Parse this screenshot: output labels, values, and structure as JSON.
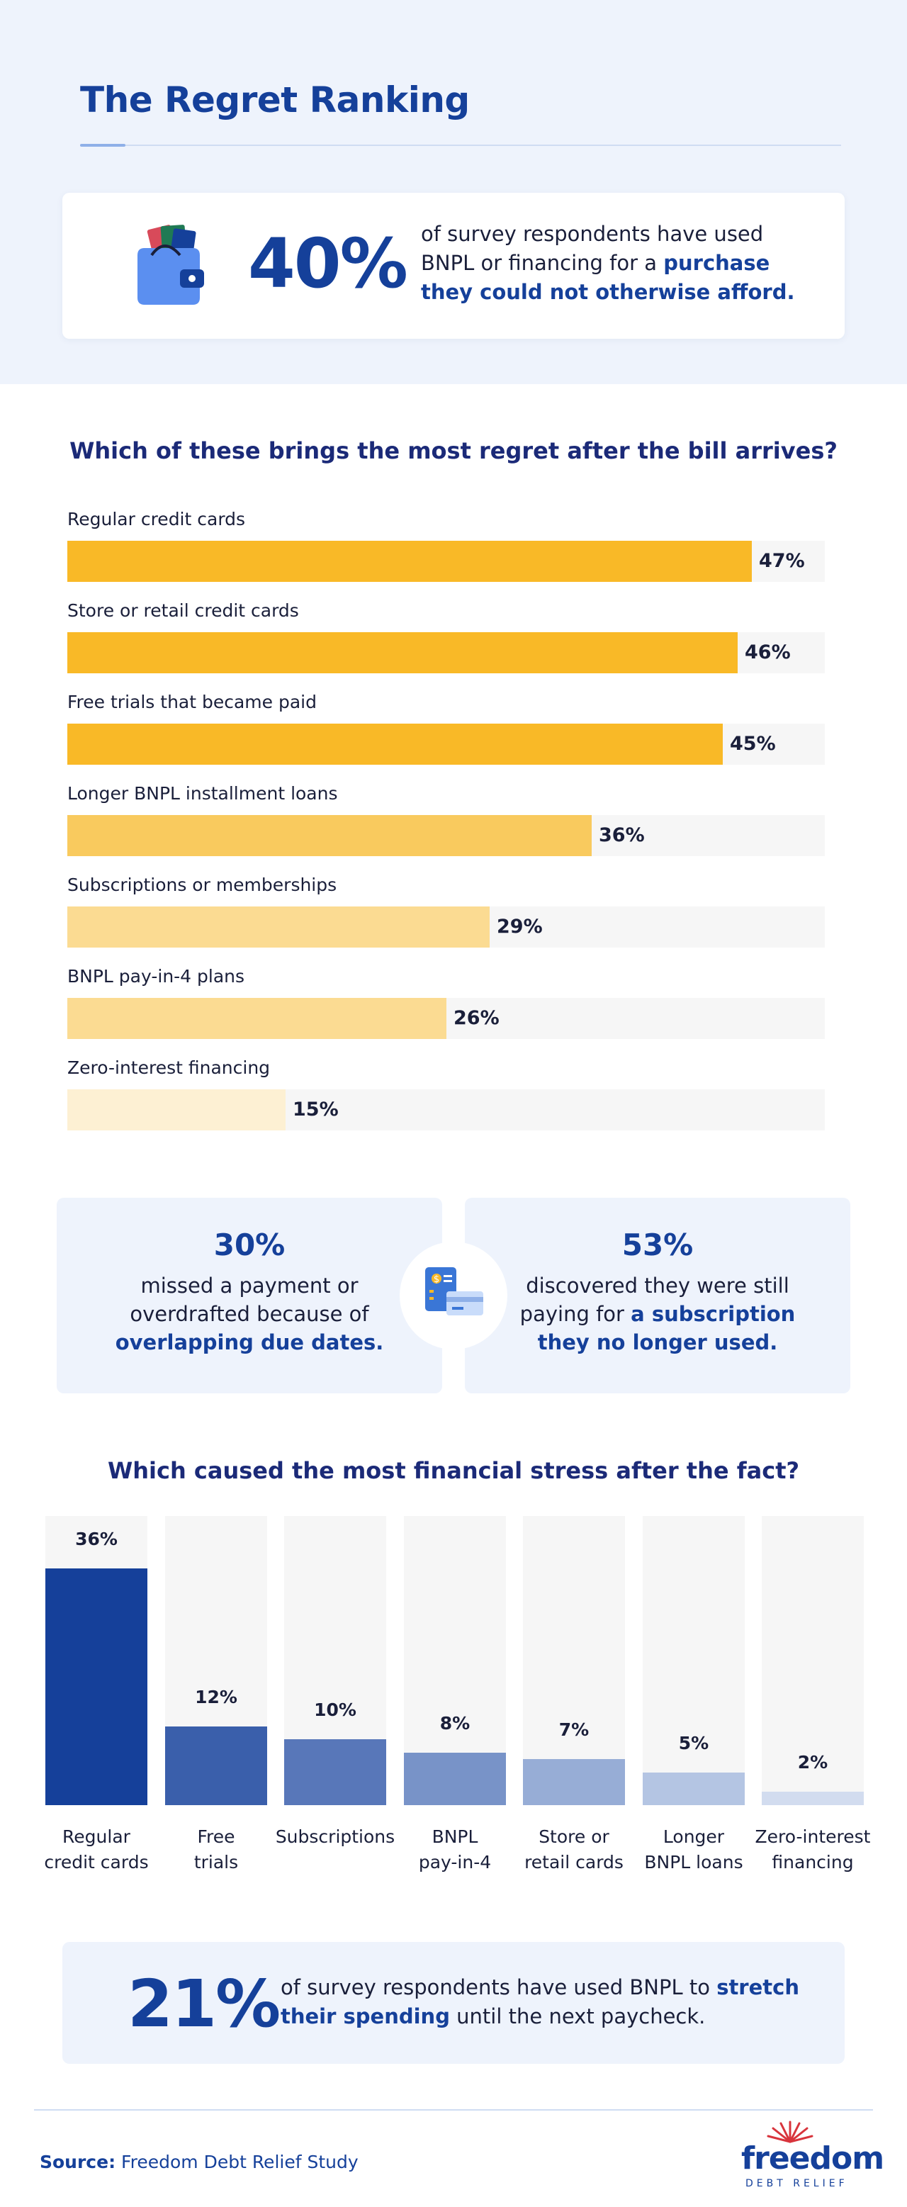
{
  "header": {
    "title": "The Regret Ranking",
    "stat_pct": "40%",
    "stat_text_plain": "of survey respondents have used BNPL or financing for a ",
    "stat_text_highlight": "purchase they could not otherwise afford."
  },
  "section1": {
    "question": "Which of these brings the most regret after the bill arrives?"
  },
  "mid_stats": {
    "left_pct": "30%",
    "left_text_plain": "missed a payment or overdrafted because of ",
    "left_text_highlight": "overlapping due dates.",
    "right_pct": "53%",
    "right_text_plain": "discovered they were still paying for ",
    "right_text_highlight": "a subscription they no longer used."
  },
  "section2": {
    "question": "Which caused the most financial stress after the fact?"
  },
  "bottom_stat": {
    "pct": "21%",
    "text_plain": "of survey respondents have used BNPL to ",
    "text_highlight": "stretch their spending",
    "text_tail": " until the next paycheck."
  },
  "footer": {
    "source_label": "Source:",
    "source_text": "Freedom Debt Relief Study",
    "logo_word": "freedom",
    "logo_sub": "DEBT RELIEF"
  },
  "colors": {
    "brand_blue": "#15409a",
    "bar_gold": "#f9b927",
    "bar_gold_mid": "#f9ca5e",
    "bar_gold_light": "#fbdb92",
    "bar_gold_pale": "#fdf0d3"
  },
  "icons": [
    "wallet-icon",
    "bill-card-icon",
    "sun-rays-icon"
  ],
  "chart_data": [
    {
      "type": "bar",
      "orientation": "horizontal",
      "title": "Which of these brings the most regret after the bill arrives?",
      "categories": [
        "Regular credit cards",
        "Store or retail credit cards",
        "Free trials that became paid",
        "Longer BNPL installment loans",
        "Subscriptions or memberships",
        "BNPL pay-in-4 plans",
        "Zero-interest financing"
      ],
      "values": [
        47,
        46,
        45,
        36,
        29,
        26,
        15
      ],
      "value_labels": [
        "47%",
        "46%",
        "45%",
        "36%",
        "29%",
        "26%",
        "15%"
      ],
      "xlim": [
        0,
        52
      ],
      "grid": false
    },
    {
      "type": "bar",
      "orientation": "vertical",
      "title": "Which caused the most financial stress after the fact?",
      "categories": [
        [
          "Regular",
          "credit cards"
        ],
        [
          "Free",
          "trials"
        ],
        [
          "Subscriptions"
        ],
        [
          "BNPL",
          "pay-in-4"
        ],
        [
          "Store or",
          "retail cards"
        ],
        [
          "Longer",
          "BNPL loans"
        ],
        [
          "Zero-interest",
          "financing"
        ]
      ],
      "values": [
        36,
        12,
        10,
        8,
        7,
        5,
        2
      ],
      "value_labels": [
        "36%",
        "12%",
        "10%",
        "8%",
        "7%",
        "5%",
        "2%"
      ],
      "ylim": [
        0,
        44
      ],
      "grid": false
    }
  ]
}
